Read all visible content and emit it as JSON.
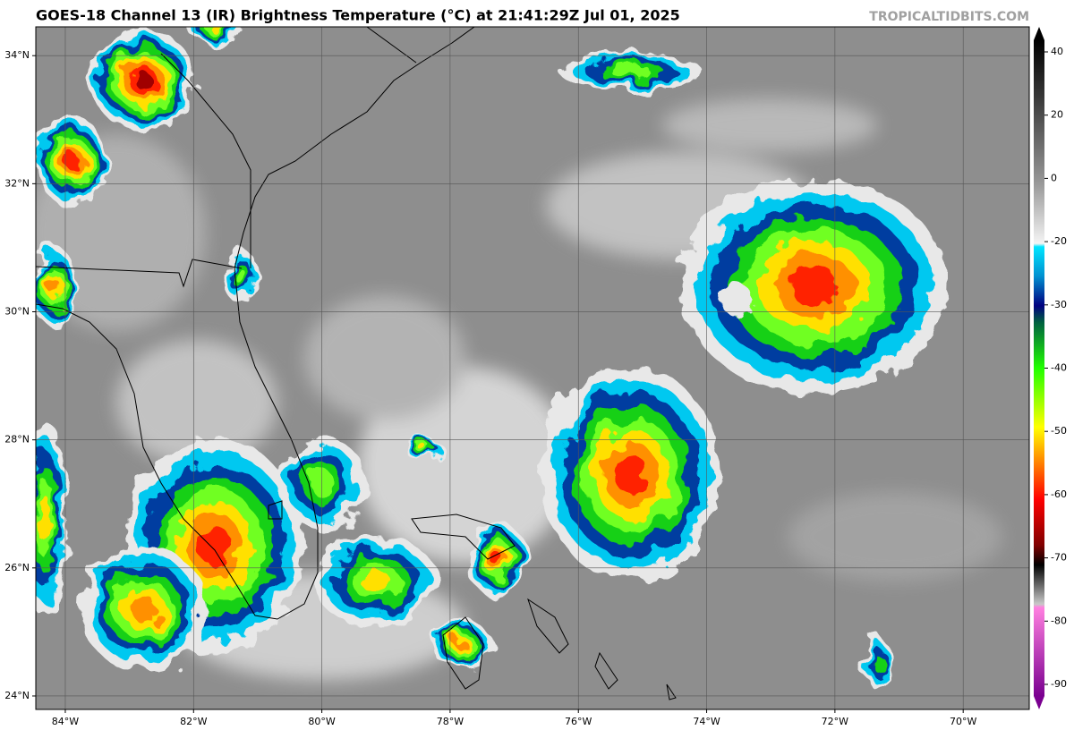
{
  "header": {
    "title": "GOES-18 Channel 13 (IR) Brightness Temperature (°C) at 21:41:29Z Jul 01, 2025",
    "watermark": "TROPICALTIDBITS.COM"
  },
  "map": {
    "lonlim": [
      -84.46,
      -68.97
    ],
    "latlim": [
      23.79,
      34.45
    ],
    "lon_ticks": [
      {
        "value": -84,
        "label": "84°W"
      },
      {
        "value": -82,
        "label": "82°W"
      },
      {
        "value": -80,
        "label": "80°W"
      },
      {
        "value": -78,
        "label": "78°W"
      },
      {
        "value": -76,
        "label": "76°W"
      },
      {
        "value": -74,
        "label": "74°W"
      },
      {
        "value": -72,
        "label": "72°W"
      },
      {
        "value": -70,
        "label": "70°W"
      }
    ],
    "lat_ticks": [
      {
        "value": 34,
        "label": "34°N"
      },
      {
        "value": 32,
        "label": "32°N"
      },
      {
        "value": 30,
        "label": "30°N"
      },
      {
        "value": 28,
        "label": "28°N"
      },
      {
        "value": 26,
        "label": "26°N"
      },
      {
        "value": 24,
        "label": "24°N"
      }
    ]
  },
  "colorbar": {
    "ticks": [
      40,
      20,
      0,
      -20,
      -30,
      -40,
      -50,
      -60,
      -70,
      -80,
      -90
    ]
  }
}
